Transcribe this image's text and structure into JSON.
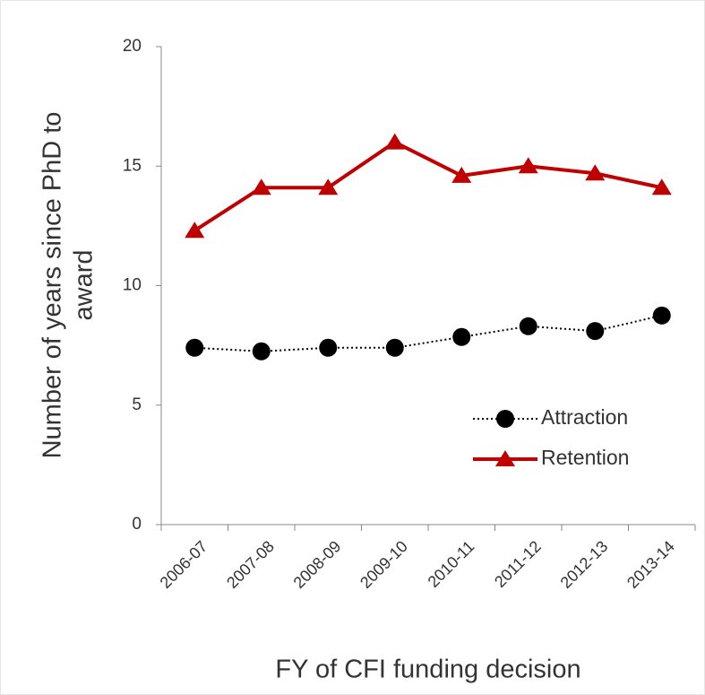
{
  "chart_data": {
    "type": "line",
    "x_label": "FY of CFI funding decision",
    "y_label": [
      "Number of years since PhD to",
      "award"
    ],
    "categories": [
      "2006-07",
      "2007-08",
      "2008-09",
      "2009-10",
      "2010-11",
      "2011-12",
      "2012-13",
      "2013-14"
    ],
    "series": [
      {
        "name": "Attraction",
        "color": "#000000",
        "values": [
          7.4,
          7.25,
          7.4,
          7.4,
          7.85,
          8.3,
          8.1,
          8.75
        ]
      },
      {
        "name": "Retention",
        "color": "#c00000",
        "values": [
          12.3,
          14.1,
          14.1,
          16,
          14.6,
          15.0,
          14.7,
          14.1
        ]
      }
    ],
    "ylim": [
      0,
      20
    ],
    "yticks": [
      0,
      5,
      10,
      15,
      20
    ],
    "grid": false,
    "legend": "lower right"
  }
}
